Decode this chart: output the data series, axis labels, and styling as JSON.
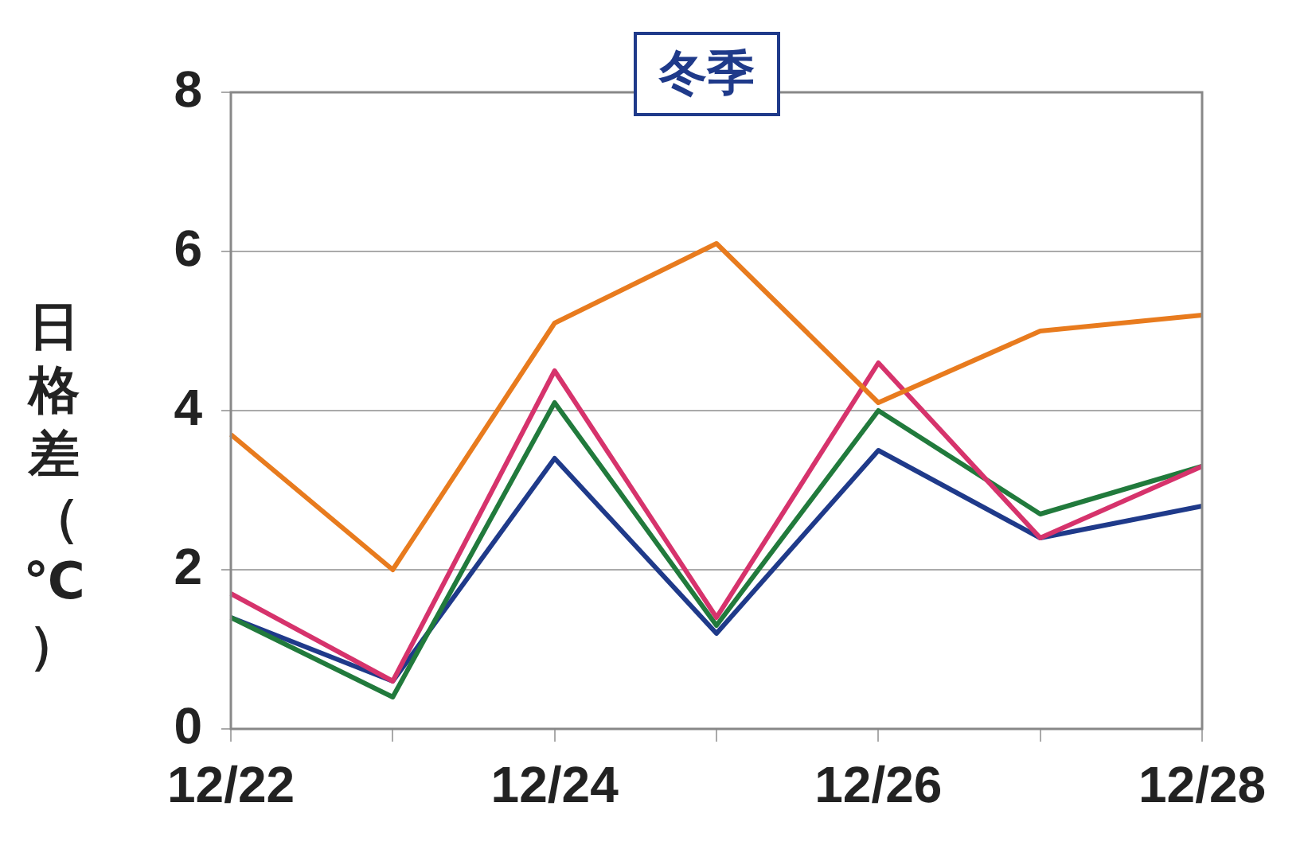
{
  "chart_data": {
    "type": "line",
    "title": "冬季",
    "ylabel": "日格差（℃）",
    "categories": [
      "12/22",
      null,
      "12/24",
      null,
      "12/26",
      null,
      "12/28"
    ],
    "series": [
      {
        "color": "#e87b1e",
        "values": [
          3.7,
          2.0,
          5.1,
          6.1,
          4.1,
          5.0,
          5.2
        ]
      },
      {
        "color": "#d6336c",
        "values": [
          1.7,
          0.6,
          4.5,
          1.4,
          4.6,
          2.4,
          3.3
        ]
      },
      {
        "color": "#217a3c",
        "values": [
          1.4,
          0.4,
          4.1,
          1.3,
          4.0,
          2.7,
          3.3
        ]
      },
      {
        "color": "#1f3a8a",
        "values": [
          1.4,
          0.6,
          3.4,
          1.2,
          3.5,
          2.4,
          2.8
        ]
      }
    ],
    "ylim": [
      0,
      8
    ],
    "yticks": [
      0,
      2,
      4,
      6,
      8
    ],
    "grid": "y",
    "legend": false,
    "marker": "none",
    "line_style": "solid"
  }
}
